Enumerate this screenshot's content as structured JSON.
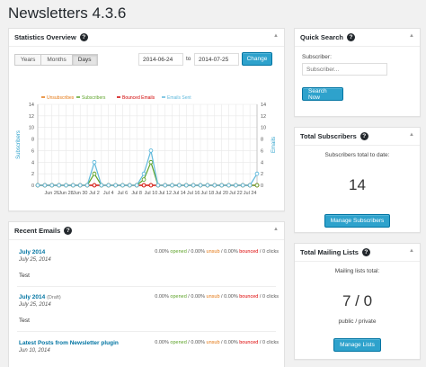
{
  "page": {
    "title": "Newsletters 4.3.6"
  },
  "colors": {
    "accent": "#2ea2cc",
    "unsubscribes": "#e47814",
    "subscribers": "#5ea32a",
    "bounced": "#d00000",
    "emails_sent": "#5fb9dc"
  },
  "stats": {
    "title": "Statistics Overview",
    "tabs": [
      {
        "label": "Years"
      },
      {
        "label": "Months"
      },
      {
        "label": "Days"
      }
    ],
    "active_tab": "Days",
    "date_from": "2014-06-24",
    "to_label": "to",
    "date_to": "2014-07-25",
    "change_label": "Change"
  },
  "chart_data": {
    "type": "line",
    "x": [
      "Jun 24",
      "Jun 25",
      "Jun 26",
      "Jun 27",
      "Jun 28",
      "Jun 29",
      "Jun 30",
      "Jul 1",
      "Jul 2",
      "Jul 3",
      "Jul 4",
      "Jul 5",
      "Jul 6",
      "Jul 7",
      "Jul 8",
      "Jul 9",
      "Jul 10",
      "Jul 11",
      "Jul 12",
      "Jul 13",
      "Jul 14",
      "Jul 15",
      "Jul 16",
      "Jul 17",
      "Jul 18",
      "Jul 19",
      "Jul 20",
      "Jul 21",
      "Jul 22",
      "Jul 23",
      "Jul 24",
      "Jul 25"
    ],
    "xtick_labels": [
      "Jun 26",
      "Jun 28",
      "Jun 30",
      "Jul 2",
      "Jul 4",
      "Jul 6",
      "Jul 8",
      "Jul 10",
      "Jul 12",
      "Jul 14",
      "Jul 16",
      "Jul 18",
      "Jul 20",
      "Jul 22",
      "Jul 24"
    ],
    "series": [
      {
        "name": "Unsubscribes",
        "values": [
          0,
          0,
          0,
          0,
          0,
          0,
          0,
          0,
          0,
          0,
          0,
          0,
          0,
          0,
          0,
          0,
          0,
          0,
          0,
          0,
          0,
          0,
          0,
          0,
          0,
          0,
          0,
          0,
          0,
          0,
          0,
          0
        ]
      },
      {
        "name": "Subscribers",
        "values": [
          0,
          0,
          0,
          0,
          0,
          0,
          0,
          0,
          2,
          0,
          0,
          0,
          0,
          0,
          0,
          1,
          4,
          0,
          0,
          0,
          0,
          0,
          0,
          0,
          0,
          0,
          0,
          0,
          0,
          0,
          0,
          0
        ]
      },
      {
        "name": "Bounced Emails",
        "values": [
          0,
          0,
          0,
          0,
          0,
          0,
          0,
          0,
          0,
          0,
          0,
          0,
          0,
          0,
          0,
          0,
          0,
          0,
          0,
          0,
          0,
          0,
          0,
          0,
          0,
          0,
          0,
          0,
          0,
          0,
          0,
          0
        ]
      },
      {
        "name": "Emails Sent",
        "values": [
          0,
          0,
          0,
          0,
          0,
          0,
          0,
          0,
          4,
          0,
          0,
          0,
          0,
          0,
          0,
          2,
          6,
          0,
          0,
          0,
          0,
          0,
          0,
          0,
          0,
          0,
          0,
          0,
          0,
          0,
          0,
          2
        ]
      }
    ],
    "ylabel": "Subscribers",
    "y2label": "Emails",
    "ylim": [
      0,
      14
    ],
    "yticks": [
      0,
      2,
      4,
      6,
      8,
      10,
      12,
      14
    ],
    "grid": true,
    "legend_position": "top"
  },
  "recent": {
    "title": "Recent Emails",
    "items": [
      {
        "title": "July 2014",
        "draft": "",
        "date": "July 25, 2014",
        "opened": "0.00%",
        "opened_label": "opened",
        "unsub": "0.00%",
        "unsub_label": "unsub",
        "bounced": "0.00%",
        "bounced_label": "bounced",
        "clicks": "0",
        "clicks_label": "clicks",
        "body": "Test"
      },
      {
        "title": "July 2014",
        "draft": "(Draft)",
        "date": "July 25, 2014",
        "opened": "0.00%",
        "opened_label": "opened",
        "unsub": "0.00%",
        "unsub_label": "unsub",
        "bounced": "0.00%",
        "bounced_label": "bounced",
        "clicks": "0",
        "clicks_label": "clicks",
        "body": "Test"
      },
      {
        "title": "Latest Posts from Newsletter plugin",
        "draft": "",
        "date": "Jun 10, 2014",
        "opened": "0.00%",
        "opened_label": "opened",
        "unsub": "0.00%",
        "unsub_label": "unsub",
        "bounced": "0.00%",
        "bounced_label": "bounced",
        "clicks": "0",
        "clicks_label": "clicks",
        "body": ""
      }
    ]
  },
  "quick_search": {
    "title": "Quick Search",
    "label": "Subscriber:",
    "placeholder": "Subscriber...",
    "button": "Search Now"
  },
  "total_subscribers": {
    "title": "Total Subscribers",
    "text": "Subscribers total to date:",
    "count": "14",
    "button": "Manage Subscribers"
  },
  "total_lists": {
    "title": "Total Mailing Lists",
    "text": "Mailing lists total:",
    "count": "7 / 0",
    "sub": "public / private",
    "button": "Manage Lists"
  }
}
